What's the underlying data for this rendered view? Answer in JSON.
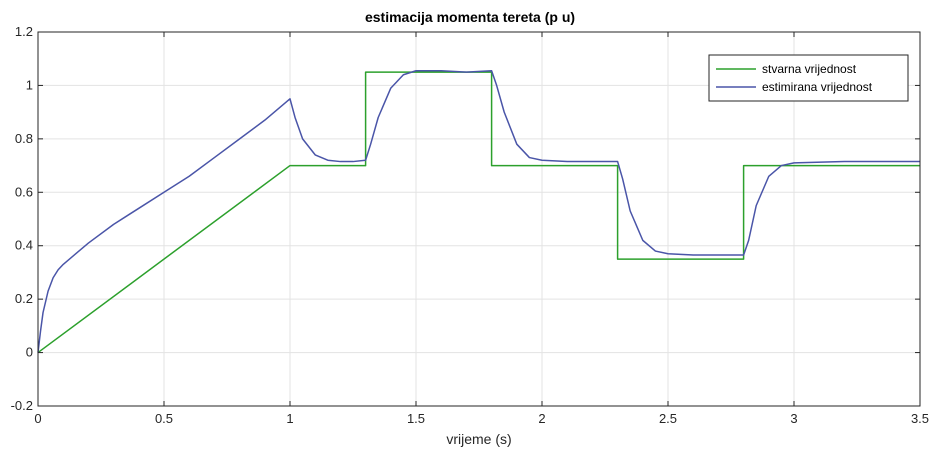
{
  "chart_data": {
    "type": "line",
    "title": "estimacija momenta tereta (p u)",
    "xlabel": "vrijeme (s)",
    "ylabel": "",
    "xlim": [
      0,
      3.5
    ],
    "ylim": [
      -0.2,
      1.2
    ],
    "xticks": [
      0,
      0.5,
      1,
      1.5,
      2,
      2.5,
      3,
      3.5
    ],
    "xtick_labels": [
      "0",
      "0.5",
      "1",
      "1.5",
      "2",
      "2.5",
      "3",
      "3.5"
    ],
    "yticks": [
      -0.2,
      0,
      0.2,
      0.4,
      0.6,
      0.8,
      1,
      1.2
    ],
    "ytick_labels": [
      "-0.2",
      "0",
      "0.2",
      "0.4",
      "0.6",
      "0.8",
      "1",
      "1.2"
    ],
    "grid": true,
    "legend_position": "top-right",
    "series": [
      {
        "name": "stvarna vrijednost",
        "color": "#2ca02c",
        "x": [
          0,
          1.0,
          1.3,
          1.3,
          1.8,
          1.8,
          2.3,
          2.3,
          2.8,
          2.8,
          3.5
        ],
        "y": [
          0,
          0.7,
          0.7,
          1.05,
          1.05,
          0.7,
          0.7,
          0.35,
          0.35,
          0.7,
          0.7
        ]
      },
      {
        "name": "estimirana vrijednost",
        "color": "#4a55a8",
        "x": [
          0,
          0.01,
          0.02,
          0.04,
          0.06,
          0.08,
          0.1,
          0.15,
          0.2,
          0.3,
          0.4,
          0.5,
          0.6,
          0.7,
          0.8,
          0.9,
          1.0,
          1.02,
          1.05,
          1.1,
          1.15,
          1.2,
          1.25,
          1.3,
          1.32,
          1.35,
          1.4,
          1.45,
          1.5,
          1.6,
          1.7,
          1.8,
          1.82,
          1.85,
          1.9,
          1.95,
          2.0,
          2.1,
          2.2,
          2.3,
          2.32,
          2.35,
          2.4,
          2.45,
          2.5,
          2.6,
          2.7,
          2.8,
          2.82,
          2.85,
          2.9,
          2.95,
          3.0,
          3.2,
          3.5
        ],
        "y": [
          0,
          0.08,
          0.15,
          0.23,
          0.28,
          0.31,
          0.33,
          0.37,
          0.41,
          0.48,
          0.54,
          0.6,
          0.66,
          0.73,
          0.8,
          0.87,
          0.95,
          0.88,
          0.8,
          0.74,
          0.72,
          0.715,
          0.715,
          0.72,
          0.78,
          0.88,
          0.99,
          1.04,
          1.055,
          1.055,
          1.05,
          1.055,
          1.0,
          0.9,
          0.78,
          0.73,
          0.72,
          0.715,
          0.715,
          0.715,
          0.65,
          0.53,
          0.42,
          0.38,
          0.37,
          0.365,
          0.365,
          0.365,
          0.42,
          0.55,
          0.66,
          0.7,
          0.71,
          0.715,
          0.715
        ]
      }
    ]
  }
}
